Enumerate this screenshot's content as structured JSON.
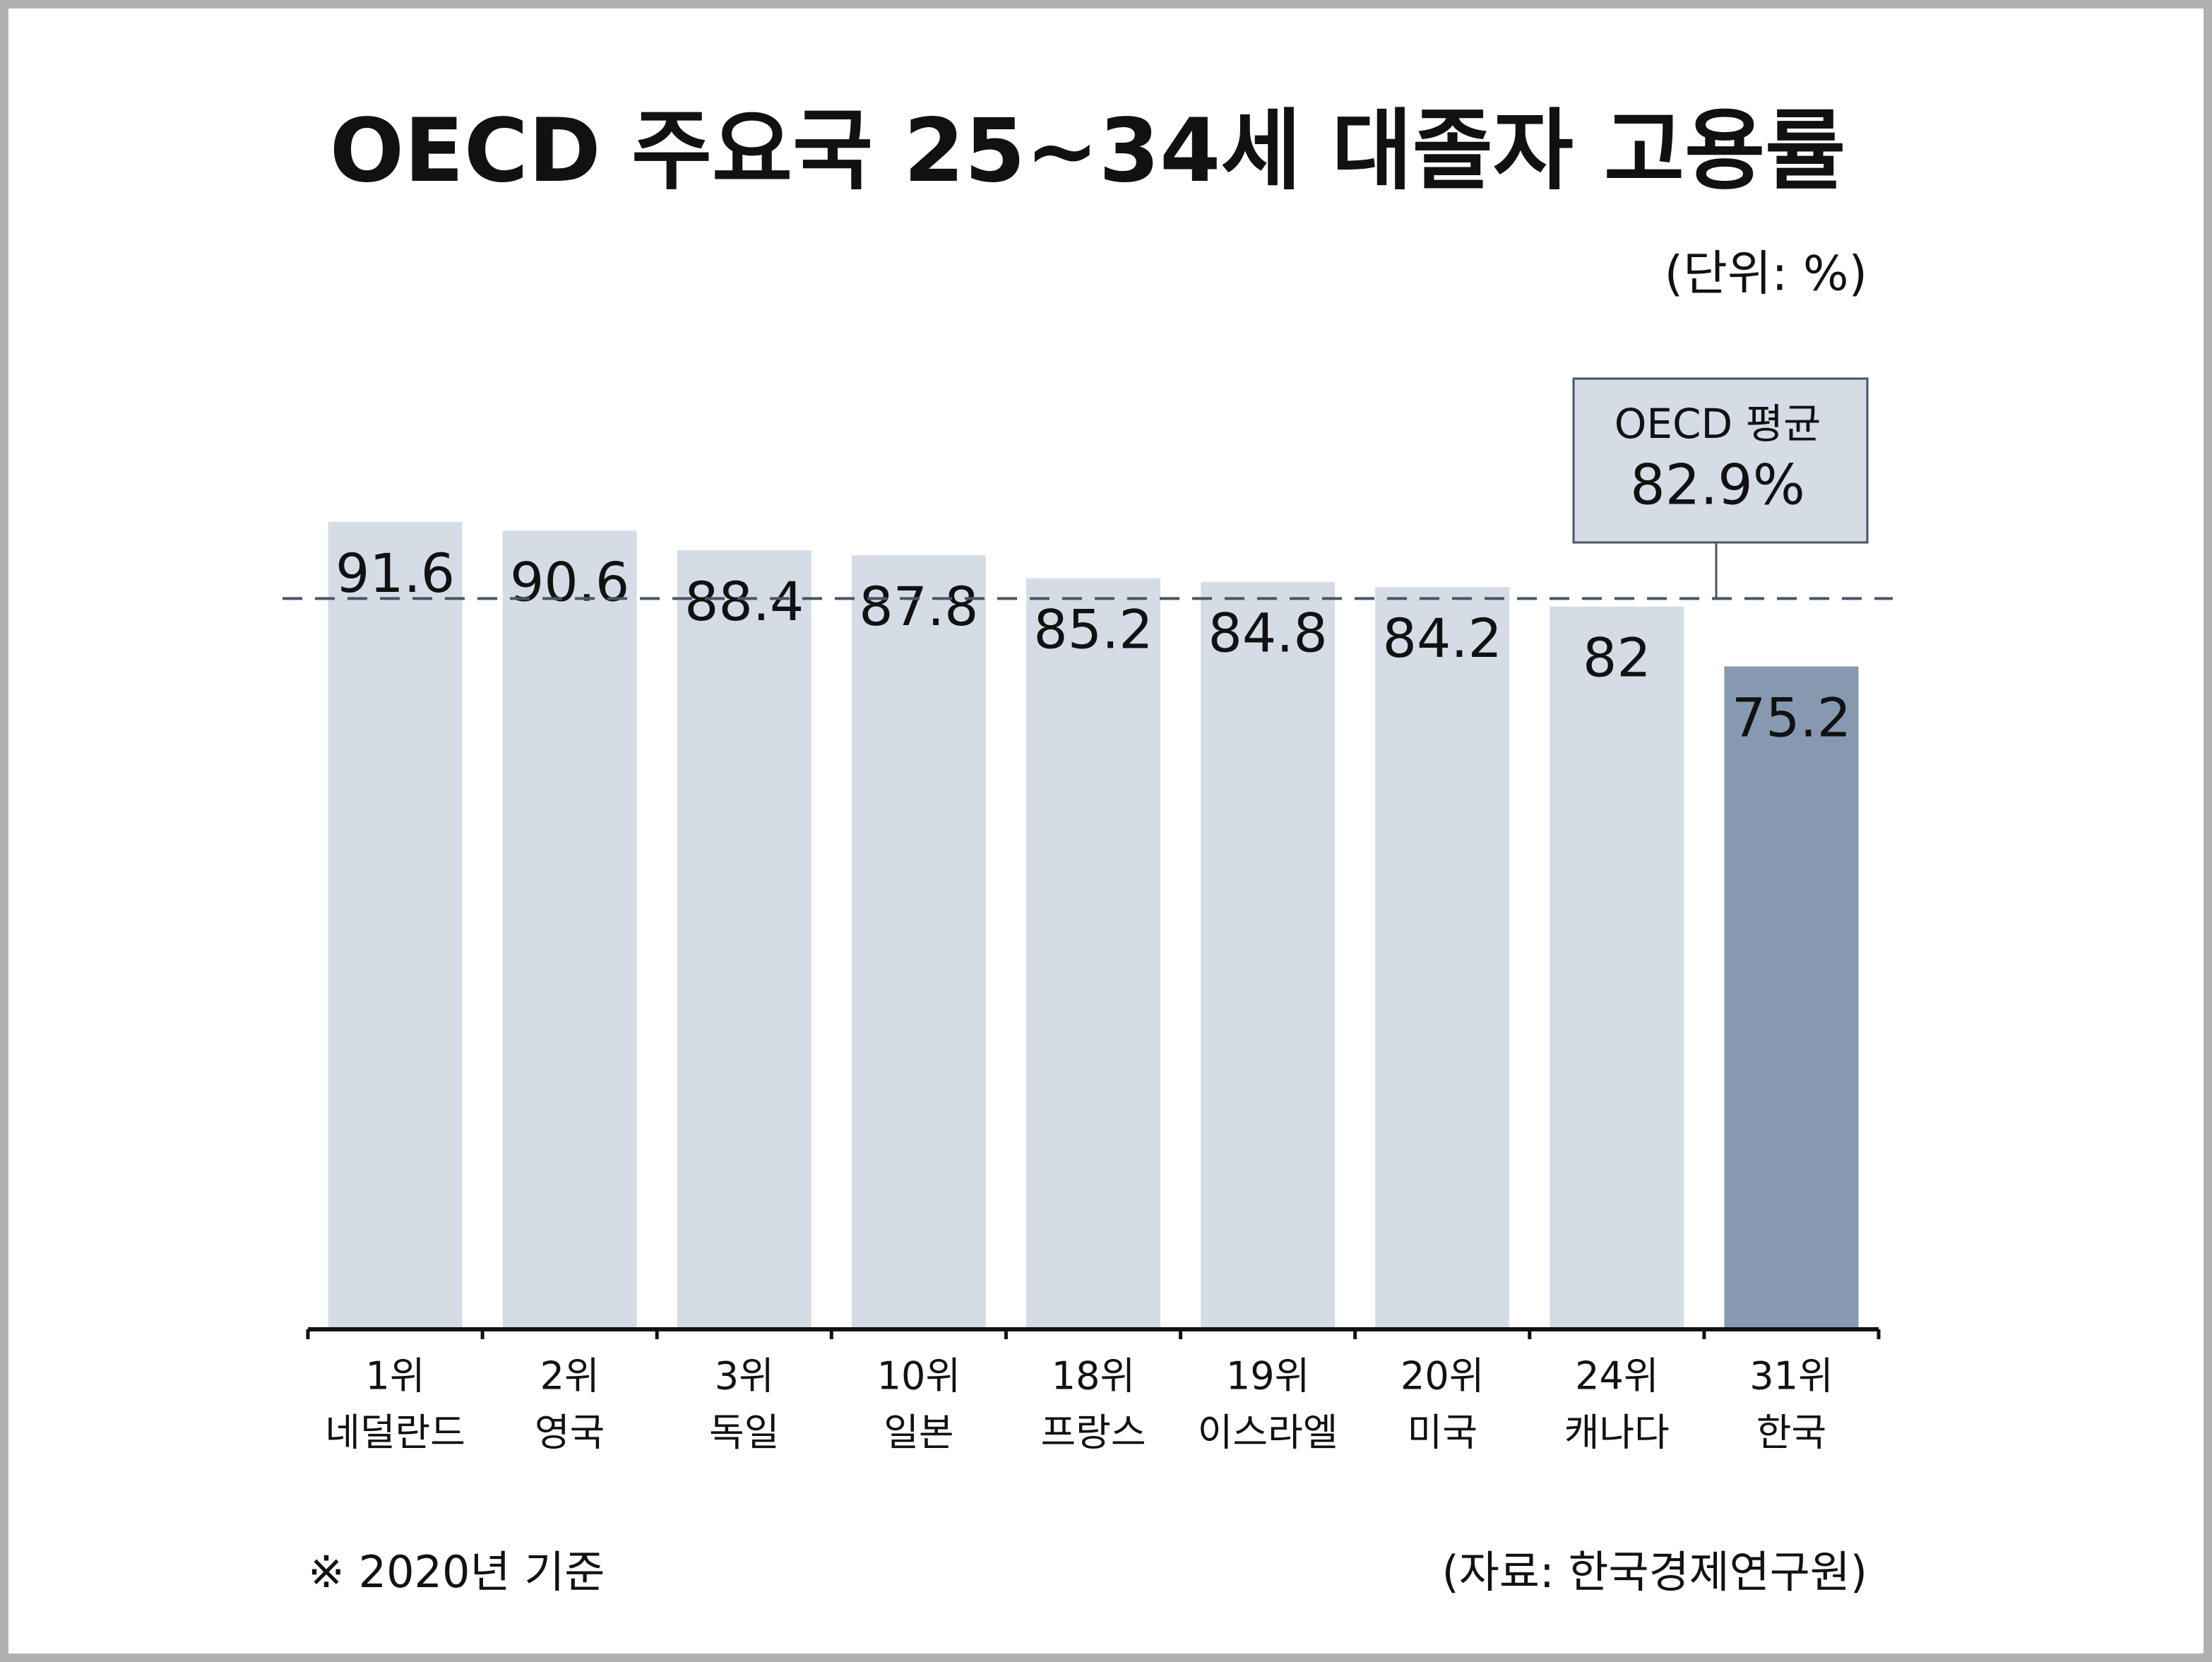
{
  "chart_data": {
    "type": "bar",
    "title": "OECD 주요국 25~34세 대졸자 고용률",
    "unit_note": "(단위: %)",
    "ranks": [
      "1위",
      "2위",
      "3위",
      "10위",
      "18위",
      "19위",
      "20위",
      "24위",
      "31위"
    ],
    "categories": [
      "네덜란드",
      "영국",
      "독일",
      "일본",
      "프랑스",
      "이스라엘",
      "미국",
      "캐나다",
      "한국"
    ],
    "values": [
      91.6,
      90.6,
      88.4,
      87.8,
      85.2,
      84.8,
      84.2,
      82,
      75.2
    ],
    "colors": [
      "#d5dce6",
      "#d5dce6",
      "#d5dce6",
      "#d5dce6",
      "#d5dce6",
      "#d5dce6",
      "#d5dce6",
      "#d5dce6",
      "#8799b0"
    ],
    "label_colors": [
      "#111111",
      "#111111",
      "#111111",
      "#111111",
      "#111111",
      "#111111",
      "#111111",
      "#111111",
      "#ffffff"
    ],
    "ylim": [
      0,
      100
    ],
    "reference_line": {
      "label": "OECD 평균",
      "value": 82.9,
      "value_label": "82.9%",
      "color": "#4a5566"
    },
    "footnote": "※ 2020년 기준",
    "source": "(자료: 한국경제연구원)"
  }
}
